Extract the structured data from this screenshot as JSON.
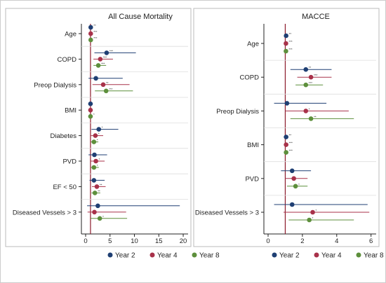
{
  "colors": {
    "year2": "#1f3f73",
    "year4": "#a8324a",
    "year8": "#5d8f3c",
    "refline": "#8b1a2b",
    "frame": "#bbbbbb",
    "axis": "#222222"
  },
  "chart_data": [
    {
      "type": "forest",
      "title": "All Cause Mortality",
      "x_ticks": [
        "0",
        "5",
        "10",
        "15",
        "20"
      ],
      "xlim": [
        0,
        21
      ],
      "reference_line": 1,
      "legend": {
        "position": "bottom",
        "entries": [
          "Year 2",
          "Year 4",
          "Year 8"
        ]
      },
      "categories": [
        {
          "label": "Age",
          "estimates": [
            {
              "series": "Year 2",
              "value": 1.05,
              "low": 1.03,
              "high": 1.07,
              "sig": "**"
            },
            {
              "series": "Year 4",
              "value": 1.05,
              "low": 1.03,
              "high": 1.07,
              "sig": "***"
            },
            {
              "series": "Year 8",
              "value": 1.05,
              "low": 1.04,
              "high": 1.06,
              "sig": "***"
            }
          ]
        },
        {
          "label": "COPD",
          "estimates": [
            {
              "series": "Year 2",
              "value": 4.3,
              "low": 1.8,
              "high": 10.3,
              "sig": "***"
            },
            {
              "series": "Year 4",
              "value": 3.0,
              "low": 1.6,
              "high": 5.6,
              "sig": "***"
            },
            {
              "series": "Year 8",
              "value": 2.6,
              "low": 1.6,
              "high": 4.2,
              "sig": "***"
            }
          ]
        },
        {
          "label": "Preop Dialysis",
          "estimates": [
            {
              "series": "Year 2",
              "value": 2.1,
              "low": 0.6,
              "high": 7.6,
              "sig": ""
            },
            {
              "series": "Year 4",
              "value": 3.6,
              "low": 1.4,
              "high": 9.0,
              "sig": "**"
            },
            {
              "series": "Year 8",
              "value": 4.2,
              "low": 1.9,
              "high": 9.7,
              "sig": "***"
            }
          ]
        },
        {
          "label": "BMI",
          "estimates": [
            {
              "series": "Year 2",
              "value": 1.0,
              "low": 0.96,
              "high": 1.04,
              "sig": ""
            },
            {
              "series": "Year 4",
              "value": 1.0,
              "low": 0.97,
              "high": 1.03,
              "sig": ""
            },
            {
              "series": "Year 8",
              "value": 1.0,
              "low": 0.98,
              "high": 1.03,
              "sig": "*"
            }
          ]
        },
        {
          "label": "Diabetes",
          "estimates": [
            {
              "series": "Year 2",
              "value": 2.7,
              "low": 1.2,
              "high": 6.7,
              "sig": "*"
            },
            {
              "series": "Year 4",
              "value": 2.0,
              "low": 1.1,
              "high": 3.6,
              "sig": "*"
            },
            {
              "series": "Year 8",
              "value": 1.7,
              "low": 1.1,
              "high": 2.6,
              "sig": "*"
            }
          ]
        },
        {
          "label": "PVD",
          "estimates": [
            {
              "series": "Year 2",
              "value": 1.8,
              "low": 0.6,
              "high": 4.4,
              "sig": ""
            },
            {
              "series": "Year 4",
              "value": 2.1,
              "low": 1.1,
              "high": 3.9,
              "sig": "*"
            },
            {
              "series": "Year 8",
              "value": 1.7,
              "low": 1.1,
              "high": 2.7,
              "sig": "*"
            }
          ]
        },
        {
          "label": "EF < 50",
          "estimates": [
            {
              "series": "Year 2",
              "value": 1.7,
              "low": 0.8,
              "high": 3.9,
              "sig": ""
            },
            {
              "series": "Year 4",
              "value": 2.3,
              "low": 1.3,
              "high": 4.1,
              "sig": "**"
            },
            {
              "series": "Year 8",
              "value": 1.9,
              "low": 1.2,
              "high": 3.0,
              "sig": "**"
            }
          ]
        },
        {
          "label": "Diseased Vessels > 3",
          "estimates": [
            {
              "series": "Year 2",
              "value": 2.5,
              "low": 0.3,
              "high": 19.3,
              "sig": ""
            },
            {
              "series": "Year 4",
              "value": 1.8,
              "low": 0.4,
              "high": 8.3,
              "sig": ""
            },
            {
              "series": "Year 8",
              "value": 2.9,
              "low": 1.0,
              "high": 8.5,
              "sig": "*"
            }
          ]
        }
      ]
    },
    {
      "type": "forest",
      "title": "MACCE",
      "x_ticks": [
        "0",
        "2",
        "4",
        "6"
      ],
      "xlim": [
        0,
        6.3
      ],
      "reference_line": 1,
      "legend": {
        "position": "bottom",
        "entries": [
          "Year 2",
          "Year 4",
          "Year 8"
        ]
      },
      "categories": [
        {
          "label": "Age",
          "estimates": [
            {
              "series": "Year 2",
              "value": 1.05,
              "low": 1.02,
              "high": 1.08,
              "sig": "**"
            },
            {
              "series": "Year 4",
              "value": 1.04,
              "low": 1.02,
              "high": 1.06,
              "sig": "***"
            },
            {
              "series": "Year 8",
              "value": 1.04,
              "low": 1.02,
              "high": 1.06,
              "sig": "***"
            }
          ]
        },
        {
          "label": "COPD",
          "estimates": [
            {
              "series": "Year 2",
              "value": 2.2,
              "low": 1.3,
              "high": 3.7,
              "sig": "**"
            },
            {
              "series": "Year 4",
              "value": 2.5,
              "low": 1.7,
              "high": 3.7,
              "sig": "***"
            },
            {
              "series": "Year 8",
              "value": 2.2,
              "low": 1.6,
              "high": 3.2,
              "sig": "***"
            }
          ]
        },
        {
          "label": "Preop Dialysis",
          "estimates": [
            {
              "series": "Year 2",
              "value": 1.1,
              "low": 0.35,
              "high": 3.4,
              "sig": ""
            },
            {
              "series": "Year 4",
              "value": 2.2,
              "low": 1.0,
              "high": 4.7,
              "sig": "*"
            },
            {
              "series": "Year 8",
              "value": 2.5,
              "low": 1.3,
              "high": 5.0,
              "sig": "**"
            }
          ]
        },
        {
          "label": "BMI",
          "estimates": [
            {
              "series": "Year 2",
              "value": 1.05,
              "low": 1.02,
              "high": 1.08,
              "sig": "**"
            },
            {
              "series": "Year 4",
              "value": 1.05,
              "low": 1.02,
              "high": 1.07,
              "sig": "***"
            },
            {
              "series": "Year 8",
              "value": 1.05,
              "low": 1.03,
              "high": 1.07,
              "sig": "***"
            }
          ]
        },
        {
          "label": "PVD",
          "estimates": [
            {
              "series": "Year 2",
              "value": 1.4,
              "low": 0.75,
              "high": 2.5,
              "sig": ""
            },
            {
              "series": "Year 4",
              "value": 1.5,
              "low": 1.0,
              "high": 2.3,
              "sig": ""
            },
            {
              "series": "Year 8",
              "value": 1.6,
              "low": 1.1,
              "high": 2.3,
              "sig": "*"
            }
          ]
        },
        {
          "label": "Diseased Vessels > 3",
          "estimates": [
            {
              "series": "Year 2",
              "value": 1.4,
              "low": 0.35,
              "high": 5.8,
              "sig": ""
            },
            {
              "series": "Year 4",
              "value": 2.6,
              "low": 0.9,
              "high": 5.9,
              "sig": "*"
            },
            {
              "series": "Year 8",
              "value": 2.4,
              "low": 1.2,
              "high": 5.0,
              "sig": "*"
            }
          ]
        }
      ]
    }
  ]
}
